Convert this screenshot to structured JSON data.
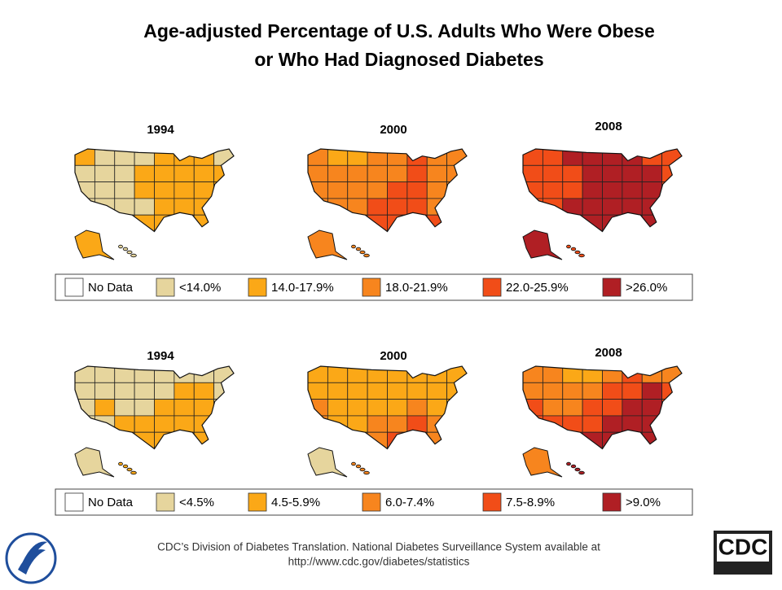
{
  "title": [
    "Age-adjusted Percentage of U.S. Adults Who Were Obese",
    "or Who Had Diagnosed Diabetes"
  ],
  "colors": [
    "#ffffff",
    "#e6d59d",
    "#fba817",
    "#f7851e",
    "#f14d18",
    "#b01f24"
  ],
  "panels": [
    {
      "legend": [
        "No Data",
        "<14.0%",
        "14.0-17.9%",
        "18.0-21.9%",
        "22.0-25.9%",
        ">26.0%"
      ],
      "maps": [
        {
          "year": "1994",
          "regions": [
            [
              2,
              1,
              1,
              1,
              2,
              2,
              2,
              1
            ],
            [
              1,
              1,
              1,
              2,
              2,
              2,
              2,
              2
            ],
            [
              1,
              1,
              1,
              2,
              2,
              2,
              2,
              2
            ],
            [
              1,
              1,
              1,
              1,
              2,
              2,
              2,
              1
            ],
            [
              1,
              1,
              1,
              2,
              2,
              2,
              2,
              1
            ]
          ],
          "alaska": 2,
          "hawaii": 1
        },
        {
          "year": "2000",
          "regions": [
            [
              3,
              2,
              2,
              3,
              3,
              4,
              3,
              3
            ],
            [
              3,
              3,
              3,
              3,
              3,
              4,
              3,
              3
            ],
            [
              3,
              3,
              3,
              3,
              4,
              4,
              3,
              3
            ],
            [
              3,
              3,
              3,
              4,
              4,
              4,
              3,
              3
            ],
            [
              3,
              3,
              3,
              4,
              4,
              4,
              4,
              3
            ]
          ],
          "alaska": 3,
          "hawaii": 3
        },
        {
          "year": "2008",
          "regions": [
            [
              4,
              4,
              5,
              5,
              5,
              5,
              4,
              4
            ],
            [
              4,
              4,
              4,
              5,
              5,
              5,
              5,
              4
            ],
            [
              4,
              4,
              4,
              5,
              5,
              5,
              5,
              4
            ],
            [
              4,
              4,
              5,
              5,
              5,
              5,
              5,
              4
            ],
            [
              4,
              4,
              4,
              5,
              5,
              5,
              5,
              4
            ]
          ],
          "alaska": 5,
          "hawaii": 4
        }
      ]
    },
    {
      "legend": [
        "No Data",
        "<4.5%",
        "4.5-5.9%",
        "6.0-7.4%",
        "7.5-8.9%",
        ">9.0%"
      ],
      "maps": [
        {
          "year": "1994",
          "regions": [
            [
              1,
              1,
              1,
              1,
              1,
              1,
              1,
              1
            ],
            [
              1,
              1,
              1,
              1,
              1,
              2,
              2,
              1
            ],
            [
              1,
              2,
              1,
              1,
              2,
              2,
              2,
              1
            ],
            [
              1,
              1,
              2,
              2,
              2,
              2,
              2,
              1
            ],
            [
              1,
              1,
              2,
              2,
              2,
              2,
              2,
              1
            ]
          ],
          "alaska": 1,
          "hawaii": 2
        },
        {
          "year": "2000",
          "regions": [
            [
              2,
              2,
              2,
              2,
              2,
              2,
              2,
              2
            ],
            [
              2,
              2,
              2,
              2,
              2,
              2,
              2,
              2
            ],
            [
              3,
              2,
              2,
              2,
              2,
              3,
              2,
              2
            ],
            [
              3,
              2,
              2,
              3,
              3,
              4,
              3,
              2
            ],
            [
              2,
              3,
              3,
              3,
              4,
              4,
              3,
              2
            ]
          ],
          "alaska": 1,
          "hawaii": 3
        },
        {
          "year": "2008",
          "regions": [
            [
              3,
              3,
              2,
              2,
              3,
              4,
              3,
              3
            ],
            [
              3,
              3,
              3,
              3,
              4,
              4,
              5,
              4
            ],
            [
              4,
              3,
              3,
              4,
              4,
              5,
              5,
              4
            ],
            [
              4,
              4,
              4,
              4,
              5,
              5,
              5,
              4
            ],
            [
              4,
              4,
              5,
              5,
              5,
              5,
              5,
              4
            ]
          ],
          "alaska": 3,
          "hawaii": 5
        }
      ]
    }
  ],
  "footer": [
    "CDC’s Division of Diabetes Translation. National Diabetes Surveillance System available at",
    "http://www.cdc.gov/diabetes/statistics"
  ],
  "logo": "CDC"
}
